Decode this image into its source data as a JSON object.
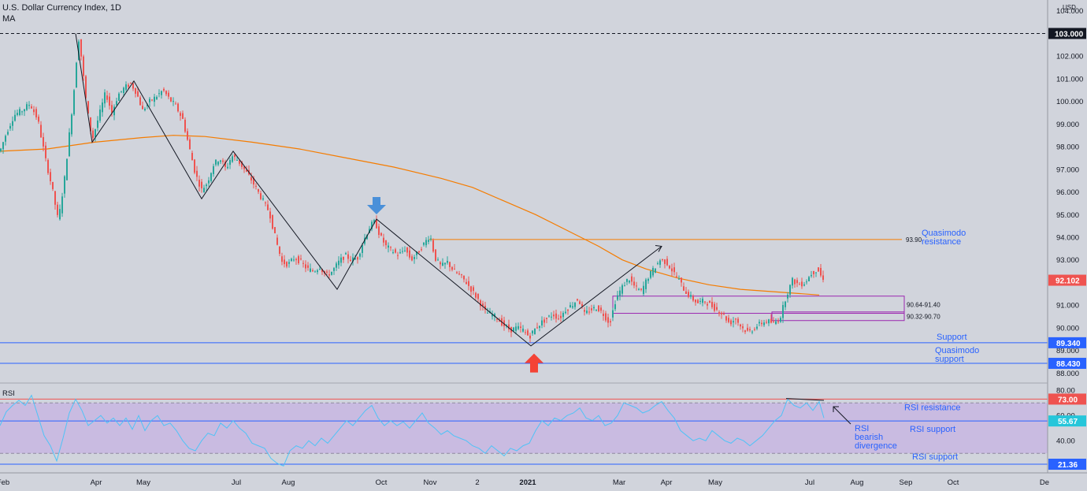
{
  "header": {
    "title": "U.S. Dollar Currency Index, 1D",
    "indicator": "MA",
    "currency": "USD",
    "rsi_label": "RSI"
  },
  "colors": {
    "background": "#d1d4dc",
    "up": "#26a69a",
    "down": "#ef5350",
    "ma": "#f57c00",
    "annotation": "#2962ff",
    "rsi_line": "#4fc3f7",
    "zone": "#9c27b0",
    "badge_price": "#ef5350",
    "badge_support": "#2962ff"
  },
  "chart_data": [
    {
      "type": "candlestick",
      "title": "U.S. Dollar Currency Index, 1D",
      "x_ticks": [
        "Feb",
        "Apr",
        "May",
        "Jul",
        "Aug",
        "Oct",
        "Nov",
        "2",
        "2021",
        "Mar",
        "Apr",
        "May",
        "Jul",
        "Aug",
        "Sep",
        "Oct",
        "De"
      ],
      "y_ticks": [
        104.0,
        103.0,
        102.0,
        101.0,
        100.0,
        99.0,
        98.0,
        97.0,
        96.0,
        95.0,
        94.0,
        93.0,
        92.0,
        91.0,
        90.0,
        89.0,
        88.0
      ],
      "y_tick_labels": [
        "104.000",
        "103.000",
        "102.000",
        "101.000",
        "100.000",
        "99.000",
        "98.000",
        "97.000",
        "96.000",
        "95.000",
        "94.000",
        "93.000",
        "92.000",
        "91.000",
        "90.000",
        "89.000",
        "88.000"
      ],
      "ylim": [
        87.7,
        104.2
      ],
      "last_price": 92.102,
      "last_price_label": "92.102",
      "high_line": 103.0,
      "high_line_label": "103.000",
      "price_path": [
        [
          0,
          97.8
        ],
        [
          8,
          98.6
        ],
        [
          18,
          99.4
        ],
        [
          28,
          99.6
        ],
        [
          38,
          99.9
        ],
        [
          48,
          99.2
        ],
        [
          58,
          97.4
        ],
        [
          66,
          96.2
        ],
        [
          74,
          94.7
        ],
        [
          82,
          96.6
        ],
        [
          90,
          99.2
        ],
        [
          96,
          101.2
        ],
        [
          99,
          103.0
        ],
        [
          103,
          102.0
        ],
        [
          110,
          99.8
        ],
        [
          117,
          98.3
        ],
        [
          126,
          99.4
        ],
        [
          134,
          100.4
        ],
        [
          142,
          99.5
        ],
        [
          150,
          100.3
        ],
        [
          158,
          100.6
        ],
        [
          166,
          100.8
        ],
        [
          173,
          100.4
        ],
        [
          181,
          99.6
        ],
        [
          190,
          100.0
        ],
        [
          198,
          100.2
        ],
        [
          207,
          100.5
        ],
        [
          215,
          100.1
        ],
        [
          223,
          99.8
        ],
        [
          232,
          99.2
        ],
        [
          240,
          98.0
        ],
        [
          248,
          96.8
        ],
        [
          256,
          96.1
        ],
        [
          263,
          96.4
        ],
        [
          271,
          97.2
        ],
        [
          279,
          97.5
        ],
        [
          287,
          97.0
        ],
        [
          294,
          97.6
        ],
        [
          302,
          97.4
        ],
        [
          310,
          97.0
        ],
        [
          318,
          96.6
        ],
        [
          326,
          96.1
        ],
        [
          334,
          95.6
        ],
        [
          342,
          95.1
        ],
        [
          350,
          93.9
        ],
        [
          358,
          92.9
        ],
        [
          366,
          92.8
        ],
        [
          374,
          93.1
        ],
        [
          382,
          92.9
        ],
        [
          390,
          92.6
        ],
        [
          398,
          92.5
        ],
        [
          406,
          92.7
        ],
        [
          414,
          92.3
        ],
        [
          422,
          92.5
        ],
        [
          430,
          92.9
        ],
        [
          438,
          93.2
        ],
        [
          446,
          93.0
        ],
        [
          454,
          93.1
        ],
        [
          462,
          93.9
        ],
        [
          470,
          94.5
        ],
        [
          476,
          94.7
        ],
        [
          482,
          94.1
        ],
        [
          490,
          93.6
        ],
        [
          498,
          93.4
        ],
        [
          506,
          93.2
        ],
        [
          514,
          93.5
        ],
        [
          522,
          93.0
        ],
        [
          530,
          93.3
        ],
        [
          538,
          93.7
        ],
        [
          546,
          94.1
        ],
        [
          552,
          93.1
        ],
        [
          560,
          92.7
        ],
        [
          568,
          92.9
        ],
        [
          576,
          92.5
        ],
        [
          584,
          92.3
        ],
        [
          592,
          92.0
        ],
        [
          600,
          91.6
        ],
        [
          608,
          91.2
        ],
        [
          616,
          90.7
        ],
        [
          624,
          90.6
        ],
        [
          632,
          90.4
        ],
        [
          640,
          90.1
        ],
        [
          648,
          89.9
        ],
        [
          656,
          90.0
        ],
        [
          664,
          89.9
        ],
        [
          672,
          89.6
        ],
        [
          678,
          89.9
        ],
        [
          686,
          90.2
        ],
        [
          694,
          90.4
        ],
        [
          702,
          90.6
        ],
        [
          710,
          90.4
        ],
        [
          718,
          90.8
        ],
        [
          726,
          91.0
        ],
        [
          734,
          91.3
        ],
        [
          742,
          90.6
        ],
        [
          750,
          90.8
        ],
        [
          758,
          90.9
        ],
        [
          766,
          90.6
        ],
        [
          774,
          90.2
        ],
        [
          782,
          91.3
        ],
        [
          790,
          91.8
        ],
        [
          798,
          92.2
        ],
        [
          806,
          91.8
        ],
        [
          814,
          91.6
        ],
        [
          822,
          92.2
        ],
        [
          830,
          92.6
        ],
        [
          838,
          93.0
        ],
        [
          846,
          92.9
        ],
        [
          854,
          92.5
        ],
        [
          862,
          92.1
        ],
        [
          870,
          91.6
        ],
        [
          878,
          91.3
        ],
        [
          886,
          91.1
        ],
        [
          894,
          91.2
        ],
        [
          902,
          91.0
        ],
        [
          910,
          90.8
        ],
        [
          918,
          90.6
        ],
        [
          926,
          90.2
        ],
        [
          934,
          90.4
        ],
        [
          942,
          90.0
        ],
        [
          950,
          89.8
        ],
        [
          958,
          90.0
        ],
        [
          966,
          90.2
        ],
        [
          974,
          90.3
        ],
        [
          982,
          90.2
        ],
        [
          990,
          90.4
        ],
        [
          998,
          91.4
        ],
        [
          1006,
          92.1
        ],
        [
          1014,
          91.9
        ],
        [
          1022,
          92.0
        ],
        [
          1030,
          92.4
        ],
        [
          1038,
          92.6
        ],
        [
          1045,
          92.1
        ]
      ],
      "moving_average": [
        [
          0,
          97.8
        ],
        [
          60,
          97.9
        ],
        [
          120,
          98.2
        ],
        [
          180,
          98.4
        ],
        [
          220,
          98.5
        ],
        [
          260,
          98.45
        ],
        [
          320,
          98.2
        ],
        [
          380,
          97.9
        ],
        [
          440,
          97.5
        ],
        [
          500,
          97.1
        ],
        [
          560,
          96.6
        ],
        [
          600,
          96.2
        ],
        [
          640,
          95.6
        ],
        [
          680,
          95.0
        ],
        [
          720,
          94.3
        ],
        [
          760,
          93.6
        ],
        [
          790,
          93.0
        ],
        [
          820,
          92.6
        ],
        [
          860,
          92.2
        ],
        [
          900,
          91.9
        ],
        [
          940,
          91.7
        ],
        [
          980,
          91.6
        ],
        [
          1040,
          91.45
        ]
      ],
      "swing_lines": [
        [
          [
            96,
            103.0
          ],
          [
            117,
            98.2
          ],
          [
            170,
            100.9
          ],
          [
            256,
            95.7
          ],
          [
            296,
            97.8
          ],
          [
            428,
            91.7
          ],
          [
            478,
            94.8
          ],
          [
            674,
            89.2
          ],
          [
            840,
            93.6
          ]
        ]
      ],
      "levels": [
        {
          "price": 93.9,
          "label": "93.90",
          "x_start": 545,
          "annotation": [
            "Quasimodo",
            "resistance"
          ],
          "color": "#f57c00"
        },
        {
          "price": 89.34,
          "label": "89.340",
          "annotation": [
            "Support"
          ],
          "color": "#2962ff"
        },
        {
          "price": 88.43,
          "label": "88.430",
          "annotation": [
            "Quasimodo",
            "support"
          ],
          "color": "#2962ff"
        }
      ],
      "zones": [
        {
          "x_start": 778,
          "x_end": 1148,
          "low": 90.64,
          "high": 91.4,
          "label": "90.64-91.40"
        },
        {
          "x_start": 980,
          "x_end": 1148,
          "low": 90.32,
          "high": 90.7,
          "label": "90.32-90.70"
        }
      ],
      "markers": [
        {
          "x": 478,
          "price": 94.8,
          "direction": "down",
          "color": "#4a90d9"
        },
        {
          "x": 678,
          "price": 89.0,
          "direction": "up",
          "color": "#f44336"
        }
      ]
    },
    {
      "type": "line",
      "title": "RSI",
      "y_ticks": [
        80,
        60,
        40
      ],
      "ylim": [
        17,
        82
      ],
      "overbought": 70,
      "oversold": 30,
      "levels": [
        {
          "value": 73,
          "label": "73.00",
          "annotation": "RSI resistance",
          "color": "#ef5350"
        },
        {
          "value": 55.67,
          "label": "55.67",
          "annotation": "RSI support",
          "color": "#2962ff"
        },
        {
          "value": 21.36,
          "label": "21.36",
          "annotation": "RSI support",
          "color": "#2962ff"
        }
      ],
      "divergence_annotation": [
        "RSI",
        "bearish",
        "divergence"
      ],
      "divergence_line": [
        [
          998,
          73.5
        ],
        [
          1046,
          72.0
        ]
      ],
      "values": [
        [
          0,
          52
        ],
        [
          8,
          63
        ],
        [
          16,
          68
        ],
        [
          24,
          72
        ],
        [
          32,
          68
        ],
        [
          40,
          76
        ],
        [
          48,
          60
        ],
        [
          56,
          44
        ],
        [
          64,
          36
        ],
        [
          72,
          24
        ],
        [
          80,
          42
        ],
        [
          88,
          62
        ],
        [
          96,
          73
        ],
        [
          104,
          64
        ],
        [
          112,
          52
        ],
        [
          120,
          56
        ],
        [
          128,
          60
        ],
        [
          136,
          54
        ],
        [
          144,
          58
        ],
        [
          152,
          52
        ],
        [
          160,
          58
        ],
        [
          168,
          49
        ],
        [
          176,
          60
        ],
        [
          184,
          48
        ],
        [
          192,
          56
        ],
        [
          200,
          60
        ],
        [
          208,
          52
        ],
        [
          216,
          54
        ],
        [
          224,
          48
        ],
        [
          232,
          40
        ],
        [
          240,
          34
        ],
        [
          248,
          32
        ],
        [
          256,
          40
        ],
        [
          264,
          46
        ],
        [
          272,
          44
        ],
        [
          280,
          54
        ],
        [
          288,
          50
        ],
        [
          296,
          56
        ],
        [
          304,
          50
        ],
        [
          312,
          46
        ],
        [
          320,
          38
        ],
        [
          328,
          36
        ],
        [
          336,
          34
        ],
        [
          344,
          26
        ],
        [
          352,
          22
        ],
        [
          360,
          20
        ],
        [
          368,
          32
        ],
        [
          376,
          36
        ],
        [
          384,
          34
        ],
        [
          392,
          40
        ],
        [
          400,
          36
        ],
        [
          408,
          42
        ],
        [
          416,
          38
        ],
        [
          424,
          44
        ],
        [
          432,
          50
        ],
        [
          440,
          56
        ],
        [
          448,
          52
        ],
        [
          456,
          58
        ],
        [
          464,
          64
        ],
        [
          472,
          68
        ],
        [
          480,
          58
        ],
        [
          488,
          52
        ],
        [
          496,
          56
        ],
        [
          504,
          52
        ],
        [
          512,
          55
        ],
        [
          520,
          50
        ],
        [
          528,
          56
        ],
        [
          536,
          62
        ],
        [
          544,
          54
        ],
        [
          552,
          50
        ],
        [
          560,
          45
        ],
        [
          568,
          48
        ],
        [
          576,
          44
        ],
        [
          584,
          42
        ],
        [
          592,
          40
        ],
        [
          600,
          36
        ],
        [
          608,
          34
        ],
        [
          616,
          30
        ],
        [
          624,
          36
        ],
        [
          632,
          32
        ],
        [
          640,
          28
        ],
        [
          648,
          34
        ],
        [
          656,
          32
        ],
        [
          664,
          36
        ],
        [
          672,
          38
        ],
        [
          680,
          48
        ],
        [
          688,
          56
        ],
        [
          696,
          52
        ],
        [
          704,
          58
        ],
        [
          712,
          56
        ],
        [
          720,
          60
        ],
        [
          728,
          62
        ],
        [
          736,
          66
        ],
        [
          744,
          58
        ],
        [
          752,
          56
        ],
        [
          760,
          60
        ],
        [
          768,
          52
        ],
        [
          776,
          54
        ],
        [
          784,
          60
        ],
        [
          792,
          70
        ],
        [
          800,
          68
        ],
        [
          808,
          66
        ],
        [
          816,
          62
        ],
        [
          824,
          64
        ],
        [
          832,
          68
        ],
        [
          840,
          71
        ],
        [
          848,
          64
        ],
        [
          856,
          58
        ],
        [
          864,
          48
        ],
        [
          872,
          44
        ],
        [
          880,
          40
        ],
        [
          888,
          42
        ],
        [
          896,
          40
        ],
        [
          904,
          48
        ],
        [
          912,
          44
        ],
        [
          920,
          40
        ],
        [
          928,
          38
        ],
        [
          936,
          42
        ],
        [
          944,
          40
        ],
        [
          952,
          36
        ],
        [
          960,
          40
        ],
        [
          968,
          44
        ],
        [
          976,
          50
        ],
        [
          984,
          56
        ],
        [
          992,
          60
        ],
        [
          1000,
          73
        ],
        [
          1008,
          68
        ],
        [
          1016,
          66
        ],
        [
          1024,
          70
        ],
        [
          1032,
          64
        ],
        [
          1040,
          71
        ],
        [
          1046,
          58
        ]
      ]
    }
  ]
}
